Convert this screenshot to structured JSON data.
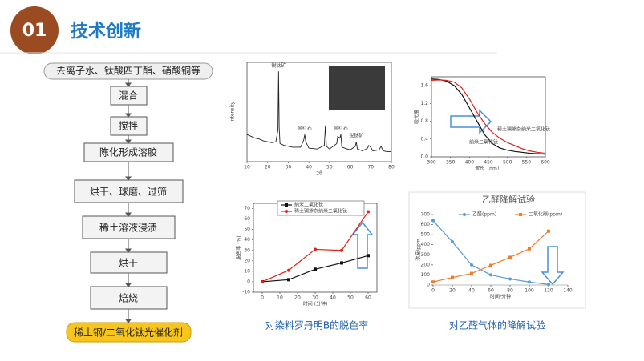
{
  "header": {
    "number": "01",
    "title": "技术创新"
  },
  "flow": {
    "steps": [
      "去离子水、钛酸四丁酯、硝酸铜等",
      "混合",
      "搅拌",
      "陈化形成溶胶",
      "烘干、球磨、过筛",
      "稀土溶液浸渍",
      "烘干",
      "焙烧",
      "稀土钢/二氧化钛光催化剂"
    ]
  },
  "captions": [
    "对染料罗丹明B的脱色率",
    "对乙醛气体的降解试验"
  ],
  "chart_data": [
    {
      "type": "line",
      "xlabel": "2θ",
      "ylabel": "Intensity",
      "color": "#222222",
      "x": [
        10,
        12,
        14,
        16,
        18,
        20,
        22,
        24,
        25,
        25.3,
        25.6,
        26,
        28,
        30,
        32,
        36,
        37.5,
        38,
        38.5,
        40,
        44,
        47.5,
        48,
        48.5,
        50,
        53.5,
        54,
        55,
        55.5,
        56,
        60,
        62.5,
        63,
        63.5,
        66,
        68.5,
        69,
        70,
        71,
        74,
        75,
        76,
        78,
        80
      ],
      "values": [
        30,
        28,
        26,
        25,
        23,
        22,
        21,
        22,
        35,
        100,
        38,
        20,
        18,
        17,
        16,
        16,
        24,
        30,
        22,
        15,
        14,
        18,
        40,
        17,
        14,
        20,
        28,
        26,
        30,
        16,
        13,
        17,
        22,
        14,
        12,
        15,
        18,
        16,
        12,
        13,
        17,
        12,
        11,
        11
      ],
      "xlim": [
        10,
        80
      ],
      "xticks": [
        10,
        20,
        30,
        40,
        50,
        60,
        70,
        80
      ],
      "ylim": [
        0,
        110
      ],
      "annotations": [
        {
          "text": "锐钛矿",
          "x": 25.3,
          "y": 100
        },
        {
          "text": "金红石",
          "x": 38,
          "y": 30
        },
        {
          "text": "金红石",
          "x": 55.5,
          "y": 30
        },
        {
          "text": "锐钛矿",
          "x": 63,
          "y": 22
        }
      ]
    },
    {
      "type": "line",
      "xlabel": "波长（nm）",
      "ylabel": "吸光度",
      "x": [
        300,
        320,
        340,
        360,
        380,
        400,
        420,
        440,
        460,
        480,
        500,
        520,
        540,
        560,
        580,
        600
      ],
      "series": [
        {
          "name": "纳米二氧化钛",
          "color": "#111111",
          "values": [
            1.75,
            1.74,
            1.7,
            1.6,
            1.4,
            1.1,
            0.8,
            0.5,
            0.3,
            0.2,
            0.15,
            0.12,
            0.1,
            0.08,
            0.07,
            0.06
          ]
        },
        {
          "name": "稀土镧掺杂纳米二氧化钛",
          "color": "#e0201a",
          "values": [
            1.72,
            1.73,
            1.72,
            1.68,
            1.55,
            1.3,
            1.0,
            0.75,
            0.55,
            0.42,
            0.32,
            0.25,
            0.18,
            0.13,
            0.1,
            0.08
          ]
        }
      ],
      "xlim": [
        300,
        600
      ],
      "xticks": [
        300,
        350,
        400,
        450,
        500,
        550,
        600
      ],
      "ylim": [
        0,
        1.8
      ],
      "yticks": [
        {
          "value": 0,
          "label": "0.0"
        },
        {
          "value": 0.4,
          "label": "0.4"
        },
        {
          "value": 0.8,
          "label": "0.8"
        },
        {
          "value": 1.2,
          "label": "1.2"
        },
        {
          "value": 1.6,
          "label": "1.6"
        }
      ]
    },
    {
      "type": "line",
      "xlabel": "时间 (分钟)",
      "ylabel": "脱色率 (%)",
      "x": [
        0,
        15,
        30,
        45,
        60
      ],
      "series": [
        {
          "name": "纳米二氧化钛",
          "color": "#111111",
          "values": [
            0,
            2,
            12,
            18,
            25
          ]
        },
        {
          "name": "稀土镧掺杂纳米二氧化钛",
          "color": "#e0201a",
          "values": [
            0,
            11,
            31,
            30,
            67
          ]
        }
      ],
      "xlim": [
        -5,
        65
      ],
      "xticks": [
        0,
        10,
        20,
        30,
        40,
        50,
        60
      ],
      "ylim": [
        -10,
        75
      ],
      "yticks": [
        -10,
        0,
        10,
        20,
        30,
        40,
        50,
        60,
        70
      ]
    },
    {
      "type": "line",
      "title": "乙醛降解试验",
      "xlabel": "时间/分钟",
      "ylabel": "浓度/ppm",
      "x": [
        0,
        20,
        40,
        60,
        80,
        100,
        120
      ],
      "series": [
        {
          "name": "乙醛(ppm)",
          "color": "#5b9bd5",
          "values": [
            640,
            430,
            200,
            100,
            60,
            30,
            5
          ]
        },
        {
          "name": "二氧化碳(ppm)",
          "color": "#ed7d31",
          "values": [
            30,
            75,
            115,
            195,
            275,
            360,
            535
          ]
        }
      ],
      "xlim": [
        0,
        140
      ],
      "xticks": [
        0,
        20,
        40,
        60,
        80,
        100,
        120,
        140
      ],
      "ylim": [
        0,
        700
      ],
      "yticks": [
        0,
        100,
        200,
        300,
        400,
        500,
        600,
        700
      ]
    }
  ]
}
